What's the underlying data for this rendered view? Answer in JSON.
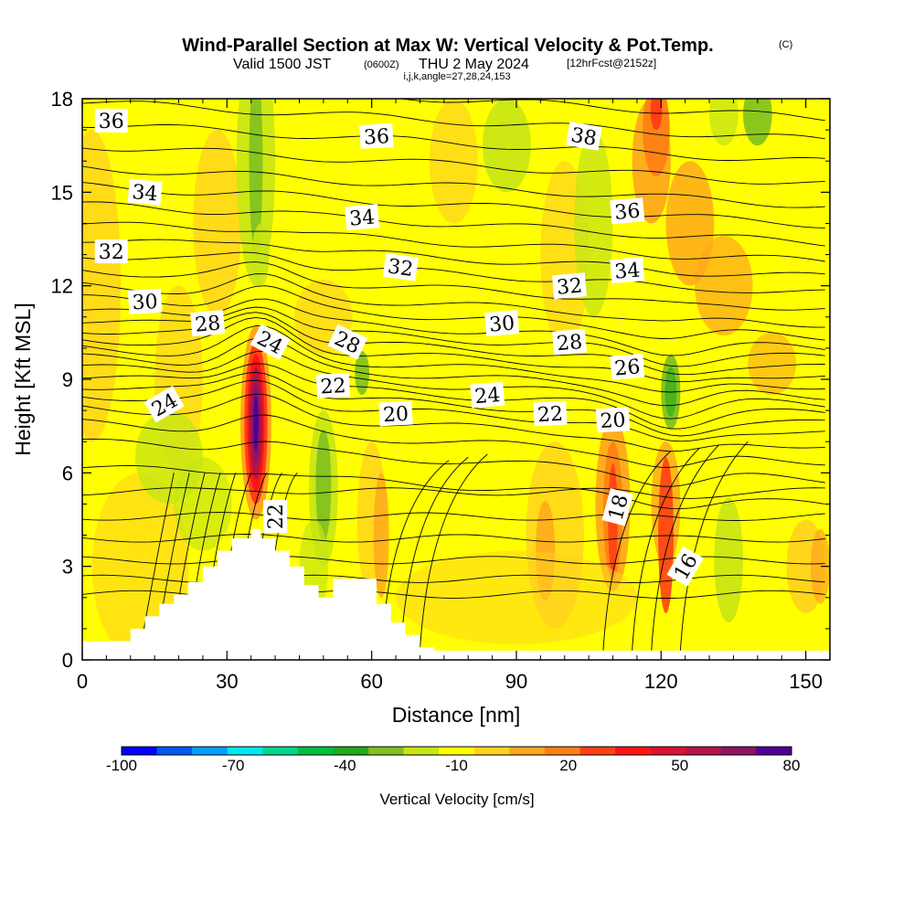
{
  "title": {
    "main": "Wind-Parallel Section at Max W: Vertical Velocity & Pot.Temp.",
    "copyright": "(C)",
    "valid": "Valid 1500 JST",
    "utc": "(0600Z)",
    "date": "THU 2 May 2024",
    "forecast": "[12hrFcst@2152z]",
    "indices": "i,j,k,angle=27,28,24,153"
  },
  "chart_data": {
    "type": "heatmap",
    "xlabel": "Distance [nm]",
    "ylabel": "Height [Kft MSL]",
    "xlim": [
      0,
      155
    ],
    "ylim": [
      0,
      18
    ],
    "x_ticks": [
      0,
      30,
      60,
      90,
      120,
      150
    ],
    "y_ticks": [
      0,
      3,
      6,
      9,
      12,
      15,
      18
    ],
    "colorbar": {
      "label": "Vertical Velocity [cm/s]",
      "tick_labels": [
        "-100",
        "-70",
        "-40",
        "-10",
        "20",
        "50",
        "80"
      ],
      "tick_values": [
        -100,
        -70,
        -40,
        -10,
        20,
        50,
        80
      ],
      "colors": [
        "#0000ff",
        "#005af0",
        "#00a0ff",
        "#00e8f0",
        "#00d68c",
        "#00c040",
        "#22aa1a",
        "#80c020",
        "#c8e614",
        "#ffff00",
        "#ffd21e",
        "#ffa51e",
        "#ff7f14",
        "#ff4014",
        "#ff1414",
        "#dc1432",
        "#b41446",
        "#8c1464",
        "#500096"
      ]
    },
    "theta_contour_labels": [
      {
        "text": "36",
        "x": 6,
        "y": 17.3,
        "rot": 0
      },
      {
        "text": "36",
        "x": 61,
        "y": 16.8,
        "rot": -3
      },
      {
        "text": "38",
        "x": 104,
        "y": 16.8,
        "rot": 10
      },
      {
        "text": "34",
        "x": 13,
        "y": 15,
        "rot": 5
      },
      {
        "text": "34",
        "x": 58,
        "y": 14.2,
        "rot": -5
      },
      {
        "text": "36",
        "x": 113,
        "y": 14.4,
        "rot": -5
      },
      {
        "text": "32",
        "x": 6,
        "y": 13.1,
        "rot": 0
      },
      {
        "text": "32",
        "x": 66,
        "y": 12.6,
        "rot": 8
      },
      {
        "text": "32",
        "x": 101,
        "y": 12,
        "rot": -5
      },
      {
        "text": "34",
        "x": 113,
        "y": 12.5,
        "rot": -5
      },
      {
        "text": "30",
        "x": 13,
        "y": 11.5,
        "rot": -3
      },
      {
        "text": "28",
        "x": 26,
        "y": 10.8,
        "rot": -5
      },
      {
        "text": "24",
        "x": 39,
        "y": 10.2,
        "rot": 28
      },
      {
        "text": "28",
        "x": 55,
        "y": 10.2,
        "rot": 25
      },
      {
        "text": "30",
        "x": 87,
        "y": 10.8,
        "rot": -5
      },
      {
        "text": "28",
        "x": 101,
        "y": 10.2,
        "rot": -5
      },
      {
        "text": "26",
        "x": 113,
        "y": 9.4,
        "rot": -5
      },
      {
        "text": "24",
        "x": 17,
        "y": 8.2,
        "rot": -30
      },
      {
        "text": "22",
        "x": 52,
        "y": 8.8,
        "rot": -3
      },
      {
        "text": "24",
        "x": 84,
        "y": 8.5,
        "rot": -5
      },
      {
        "text": "20",
        "x": 65,
        "y": 7.9,
        "rot": -3
      },
      {
        "text": "22",
        "x": 97,
        "y": 7.9,
        "rot": -3
      },
      {
        "text": "20",
        "x": 110,
        "y": 7.7,
        "rot": -3
      },
      {
        "text": "22",
        "x": 40,
        "y": 4.6,
        "rot": -90
      },
      {
        "text": "18",
        "x": 111,
        "y": 4.9,
        "rot": -75
      },
      {
        "text": "16",
        "x": 125,
        "y": 3,
        "rot": -60
      }
    ]
  }
}
